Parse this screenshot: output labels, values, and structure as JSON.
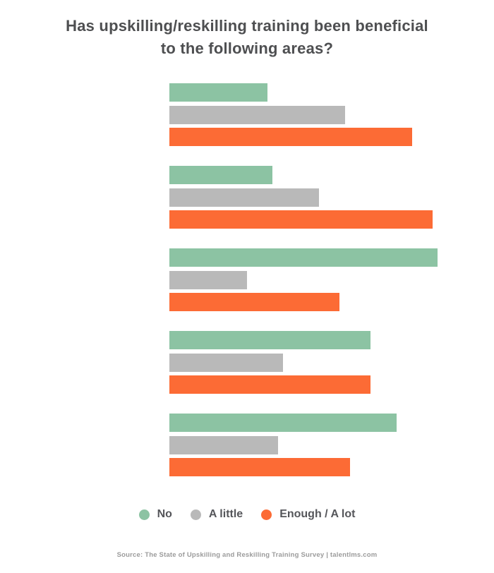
{
  "title": {
    "line1": "Has upskilling/reskilling training been beneficial",
    "line2": "to the following areas?"
  },
  "footer": {
    "source_text": "Source: The State of Upskilling and Reskilling Training Survey  |  talentlms.com"
  },
  "colors": {
    "background": "#ffffff",
    "title_text": "#4e4f51",
    "legend_text": "#55565a",
    "footer_text": "#9b9b9b",
    "series_no": "#8cc3a3",
    "series_a_little": "#b9b9b9",
    "series_enough_a_lot": "#fc6b35"
  },
  "chart_data": {
    "type": "bar",
    "orientation": "horizontal",
    "title": "Has upskilling/reskilling training been beneficial to the following areas?",
    "categories": [
      "group-1",
      "group-2",
      "group-3",
      "group-4",
      "group-5"
    ],
    "category_labels_visible": false,
    "series": [
      {
        "name": "No",
        "color": "#8cc3a3",
        "values": [
          19,
          20,
          52,
          39,
          44
        ]
      },
      {
        "name": "A little",
        "color": "#b9b9b9",
        "values": [
          34,
          29,
          15,
          22,
          21
        ]
      },
      {
        "name": "Enough / A lot",
        "color": "#fc6b35",
        "values": [
          47,
          51,
          33,
          39,
          35
        ]
      }
    ],
    "unit": "percent",
    "group_totals": [
      100,
      100,
      100,
      100,
      100
    ],
    "value_labels_visible": false,
    "axes_visible": false,
    "grid": false,
    "legend_position": "bottom"
  }
}
